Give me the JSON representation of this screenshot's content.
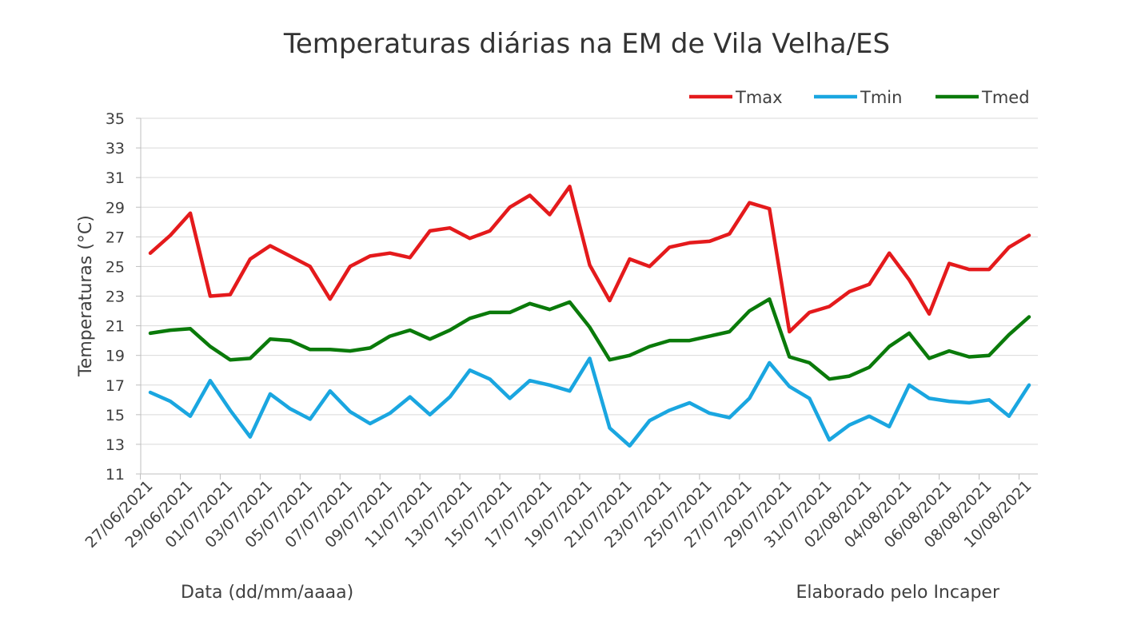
{
  "chart_data": {
    "type": "line",
    "title": "Temperaturas diárias na EM de Vila Velha/ES",
    "ylabel": "Temperaturas (°C)",
    "xlabel": "Data (dd/mm/aaaa)",
    "credit": "Elaborado pelo Incaper",
    "ylim": [
      11,
      35
    ],
    "yticks": [
      11,
      13,
      15,
      17,
      19,
      21,
      23,
      25,
      27,
      29,
      31,
      33,
      35
    ],
    "grid": true,
    "legend_position": "top-right",
    "x": [
      "27/06/2021",
      "28/06/2021",
      "29/06/2021",
      "30/06/2021",
      "01/07/2021",
      "02/07/2021",
      "03/07/2021",
      "04/07/2021",
      "05/07/2021",
      "06/07/2021",
      "07/07/2021",
      "08/07/2021",
      "09/07/2021",
      "10/07/2021",
      "11/07/2021",
      "12/07/2021",
      "13/07/2021",
      "14/07/2021",
      "15/07/2021",
      "16/07/2021",
      "17/07/2021",
      "18/07/2021",
      "19/07/2021",
      "20/07/2021",
      "21/07/2021",
      "22/07/2021",
      "23/07/2021",
      "24/07/2021",
      "25/07/2021",
      "26/07/2021",
      "27/07/2021",
      "28/07/2021",
      "29/07/2021",
      "30/07/2021",
      "31/07/2021",
      "01/08/2021",
      "02/08/2021",
      "03/08/2021",
      "04/08/2021",
      "05/08/2021",
      "06/08/2021",
      "07/08/2021",
      "08/08/2021",
      "09/08/2021",
      "10/08/2021"
    ],
    "tick_labels": [
      "27/06/2021",
      "29/06/2021",
      "01/07/2021",
      "03/07/2021",
      "05/07/2021",
      "07/07/2021",
      "09/07/2021",
      "11/07/2021",
      "13/07/2021",
      "15/07/2021",
      "17/07/2021",
      "19/07/2021",
      "21/07/2021",
      "23/07/2021",
      "25/07/2021",
      "27/07/2021",
      "29/07/2021",
      "31/07/2021",
      "02/08/2021",
      "04/08/2021",
      "06/08/2021",
      "08/08/2021",
      "10/08/2021"
    ],
    "series": [
      {
        "name": "Tmax",
        "color": "#e41a1c",
        "values": [
          25.9,
          27.1,
          28.6,
          23.0,
          23.1,
          25.5,
          26.4,
          25.7,
          25.0,
          22.8,
          25.0,
          25.7,
          25.9,
          25.6,
          27.4,
          27.6,
          26.9,
          27.4,
          29.0,
          29.8,
          28.5,
          30.4,
          25.1,
          22.7,
          25.5,
          25.0,
          26.3,
          26.6,
          26.7,
          27.2,
          29.3,
          28.9,
          20.6,
          21.9,
          22.3,
          23.3,
          23.8,
          25.9,
          24.1,
          21.8,
          25.2,
          24.8,
          24.8,
          26.3,
          27.1
        ]
      },
      {
        "name": "Tmin",
        "color": "#1aa6e0",
        "values": [
          16.5,
          15.9,
          14.9,
          17.3,
          15.3,
          13.5,
          16.4,
          15.4,
          14.7,
          16.6,
          15.2,
          14.4,
          15.1,
          16.2,
          15.0,
          16.2,
          18.0,
          17.4,
          16.1,
          17.3,
          17.0,
          16.6,
          18.8,
          14.1,
          12.9,
          14.6,
          15.3,
          15.8,
          15.1,
          14.8,
          16.1,
          18.5,
          16.9,
          16.1,
          13.3,
          14.3,
          14.9,
          14.2,
          17.0,
          16.1,
          15.9,
          15.8,
          16.0,
          14.9,
          17.0
        ]
      },
      {
        "name": "Tmed",
        "color": "#0a7a0a",
        "values": [
          20.5,
          20.7,
          20.8,
          19.6,
          18.7,
          18.8,
          20.1,
          20.0,
          19.4,
          19.4,
          19.3,
          19.5,
          20.3,
          20.7,
          20.1,
          20.7,
          21.5,
          21.9,
          21.9,
          22.5,
          22.1,
          22.6,
          20.9,
          18.7,
          19.0,
          19.6,
          20.0,
          20.0,
          20.3,
          20.6,
          22.0,
          22.8,
          18.9,
          18.5,
          17.4,
          17.6,
          18.2,
          19.6,
          20.5,
          18.8,
          19.3,
          18.9,
          19.0,
          20.4,
          21.6
        ]
      }
    ]
  }
}
